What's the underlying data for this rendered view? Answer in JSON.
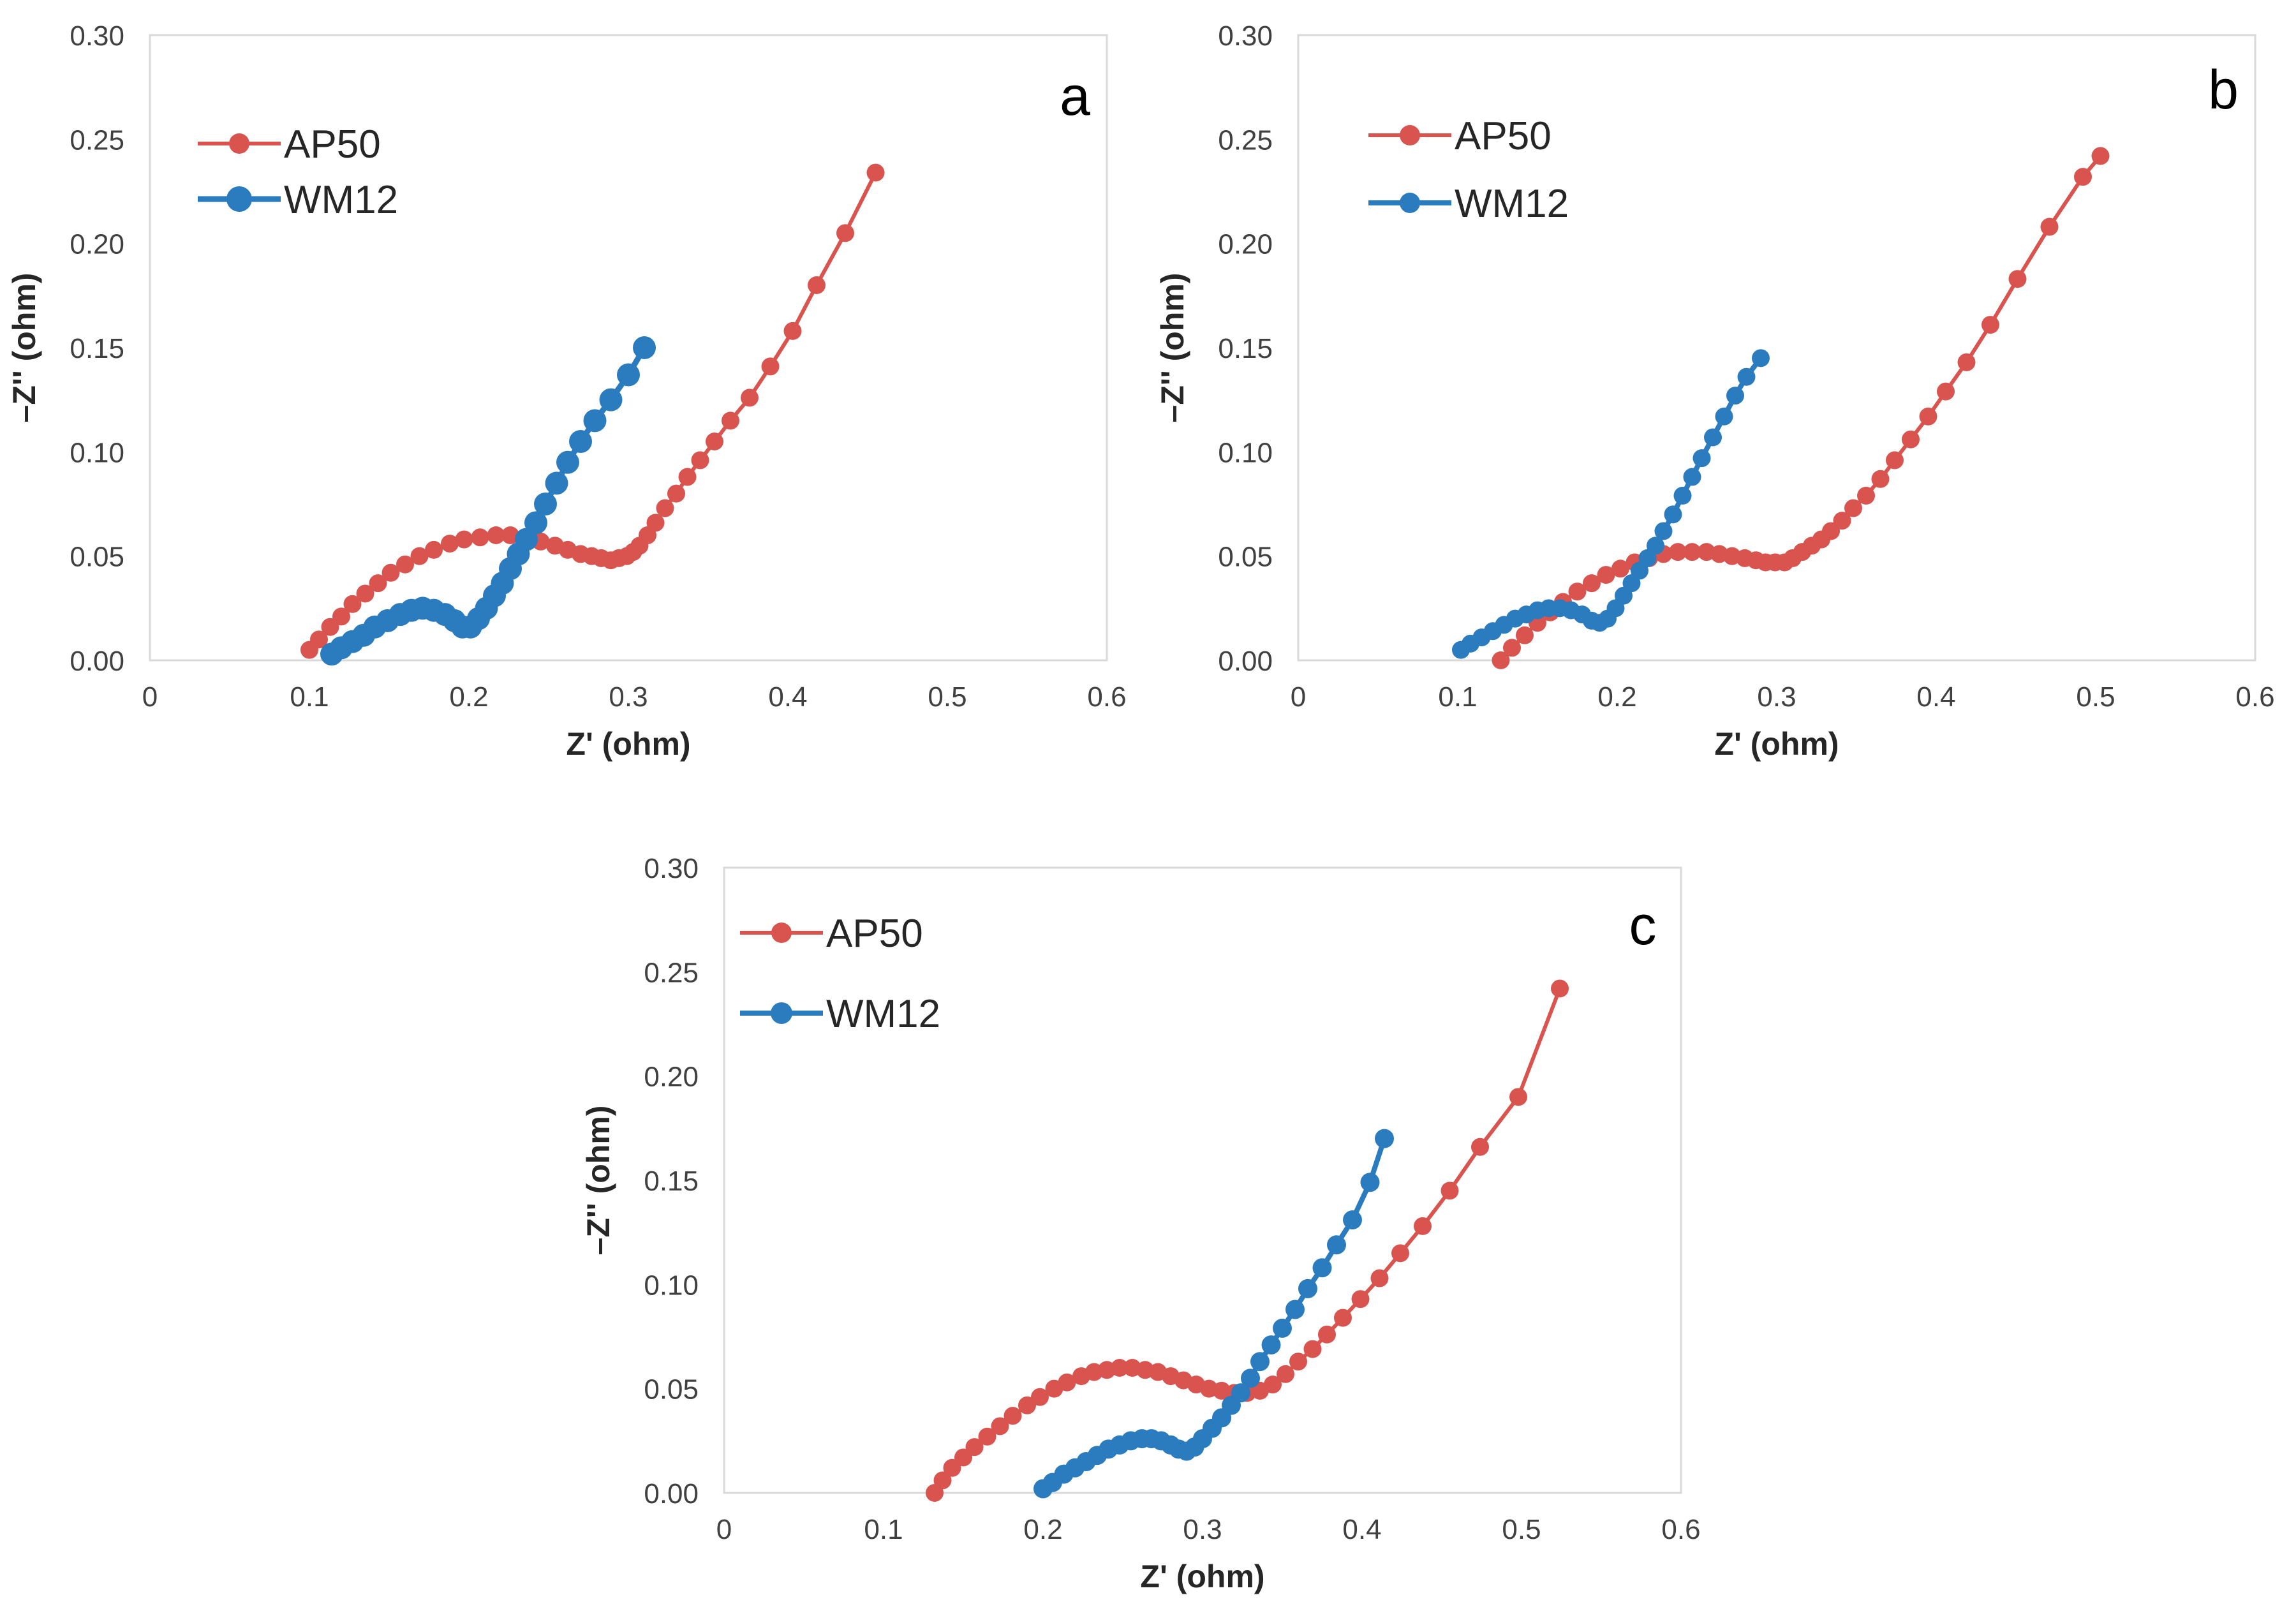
{
  "chart_data": [
    {
      "type": "scatter",
      "panel_label": "a",
      "xlabel": "Z' (ohm)",
      "ylabel": "–Z'' (ohm)",
      "xlim": [
        0,
        0.6
      ],
      "ylim": [
        0,
        0.3
      ],
      "x_ticks": [
        "0",
        "0.1",
        "0.2",
        "0.3",
        "0.4",
        "0.5",
        "0.6"
      ],
      "y_ticks": [
        "0.00",
        "0.05",
        "0.10",
        "0.15",
        "0.20",
        "0.25",
        "0.30"
      ],
      "legend_position": "top-left",
      "series": [
        {
          "name": "AP50",
          "color": "#d9534f",
          "x": [
            0.1,
            0.106,
            0.113,
            0.12,
            0.127,
            0.135,
            0.143,
            0.151,
            0.16,
            0.169,
            0.178,
            0.188,
            0.197,
            0.207,
            0.217,
            0.226,
            0.236,
            0.245,
            0.254,
            0.262,
            0.27,
            0.277,
            0.283,
            0.289,
            0.294,
            0.299,
            0.303,
            0.307,
            0.312,
            0.317,
            0.323,
            0.33,
            0.337,
            0.345,
            0.354,
            0.364,
            0.376,
            0.389,
            0.403,
            0.418,
            0.436,
            0.455
          ],
          "y": [
            0.005,
            0.01,
            0.016,
            0.021,
            0.027,
            0.032,
            0.037,
            0.042,
            0.046,
            0.05,
            0.053,
            0.056,
            0.058,
            0.059,
            0.06,
            0.06,
            0.059,
            0.057,
            0.055,
            0.053,
            0.051,
            0.05,
            0.049,
            0.048,
            0.049,
            0.05,
            0.052,
            0.055,
            0.06,
            0.066,
            0.073,
            0.08,
            0.088,
            0.096,
            0.105,
            0.115,
            0.126,
            0.141,
            0.158,
            0.18,
            0.205,
            0.234
          ]
        },
        {
          "name": "WM12",
          "color": "#2b7bbf",
          "x": [
            0.114,
            0.12,
            0.127,
            0.134,
            0.141,
            0.149,
            0.157,
            0.164,
            0.171,
            0.178,
            0.185,
            0.191,
            0.196,
            0.201,
            0.206,
            0.211,
            0.216,
            0.221,
            0.226,
            0.231,
            0.236,
            0.242,
            0.248,
            0.255,
            0.262,
            0.27,
            0.279,
            0.289,
            0.3,
            0.31
          ],
          "y": [
            0.003,
            0.006,
            0.009,
            0.012,
            0.016,
            0.019,
            0.022,
            0.024,
            0.025,
            0.024,
            0.022,
            0.019,
            0.016,
            0.016,
            0.02,
            0.025,
            0.031,
            0.037,
            0.044,
            0.051,
            0.058,
            0.066,
            0.075,
            0.085,
            0.095,
            0.105,
            0.115,
            0.125,
            0.137,
            0.15
          ]
        }
      ]
    },
    {
      "type": "scatter",
      "panel_label": "b",
      "xlabel": "Z' (ohm)",
      "ylabel": "–Z'' (ohm)",
      "xlim": [
        0,
        0.6
      ],
      "ylim": [
        0,
        0.3
      ],
      "x_ticks": [
        "0",
        "0.1",
        "0.2",
        "0.3",
        "0.4",
        "0.5",
        "0.6"
      ],
      "y_ticks": [
        "0.00",
        "0.05",
        "0.10",
        "0.15",
        "0.20",
        "0.25",
        "0.30"
      ],
      "legend_position": "top-left",
      "series": [
        {
          "name": "AP50",
          "color": "#d9534f",
          "x": [
            0.127,
            0.134,
            0.142,
            0.15,
            0.158,
            0.166,
            0.175,
            0.184,
            0.193,
            0.202,
            0.211,
            0.22,
            0.229,
            0.238,
            0.247,
            0.256,
            0.264,
            0.272,
            0.28,
            0.287,
            0.293,
            0.299,
            0.305,
            0.31,
            0.316,
            0.322,
            0.328,
            0.334,
            0.341,
            0.348,
            0.356,
            0.365,
            0.374,
            0.384,
            0.395,
            0.406,
            0.419,
            0.434,
            0.451,
            0.471,
            0.492,
            0.503
          ],
          "y": [
            0.0,
            0.006,
            0.012,
            0.018,
            0.023,
            0.028,
            0.033,
            0.037,
            0.041,
            0.044,
            0.047,
            0.049,
            0.051,
            0.052,
            0.052,
            0.052,
            0.051,
            0.05,
            0.049,
            0.048,
            0.047,
            0.047,
            0.047,
            0.049,
            0.052,
            0.055,
            0.058,
            0.062,
            0.067,
            0.073,
            0.079,
            0.087,
            0.096,
            0.106,
            0.117,
            0.129,
            0.143,
            0.161,
            0.183,
            0.208,
            0.232,
            0.242
          ]
        },
        {
          "name": "WM12",
          "color": "#2b7bbf",
          "x": [
            0.102,
            0.108,
            0.115,
            0.122,
            0.129,
            0.136,
            0.143,
            0.15,
            0.157,
            0.164,
            0.171,
            0.178,
            0.184,
            0.189,
            0.194,
            0.199,
            0.204,
            0.209,
            0.214,
            0.219,
            0.224,
            0.229,
            0.235,
            0.241,
            0.247,
            0.253,
            0.26,
            0.267,
            0.274,
            0.281,
            0.29
          ],
          "y": [
            0.005,
            0.008,
            0.011,
            0.014,
            0.017,
            0.02,
            0.022,
            0.024,
            0.025,
            0.025,
            0.024,
            0.022,
            0.019,
            0.018,
            0.02,
            0.025,
            0.031,
            0.037,
            0.043,
            0.049,
            0.055,
            0.062,
            0.07,
            0.079,
            0.088,
            0.097,
            0.107,
            0.117,
            0.127,
            0.136,
            0.145
          ]
        }
      ]
    },
    {
      "type": "scatter",
      "panel_label": "c",
      "xlabel": "Z' (ohm)",
      "ylabel": "–Z'' (ohm)",
      "xlim": [
        0,
        0.6
      ],
      "ylim": [
        0,
        0.3
      ],
      "x_ticks": [
        "0",
        "0.1",
        "0.2",
        "0.3",
        "0.4",
        "0.5",
        "0.6"
      ],
      "y_ticks": [
        "0.00",
        "0.05",
        "0.10",
        "0.15",
        "0.20",
        "0.25",
        "0.30"
      ],
      "legend_position": "top-left",
      "series": [
        {
          "name": "AP50",
          "color": "#d9534f",
          "x": [
            0.132,
            0.137,
            0.143,
            0.15,
            0.157,
            0.165,
            0.173,
            0.181,
            0.19,
            0.198,
            0.207,
            0.215,
            0.224,
            0.232,
            0.24,
            0.248,
            0.256,
            0.264,
            0.272,
            0.28,
            0.288,
            0.296,
            0.304,
            0.312,
            0.32,
            0.328,
            0.336,
            0.344,
            0.352,
            0.36,
            0.369,
            0.378,
            0.388,
            0.399,
            0.411,
            0.424,
            0.438,
            0.455,
            0.474,
            0.498,
            0.524
          ],
          "y": [
            0.0,
            0.006,
            0.012,
            0.017,
            0.022,
            0.027,
            0.032,
            0.037,
            0.042,
            0.046,
            0.05,
            0.053,
            0.056,
            0.058,
            0.059,
            0.06,
            0.06,
            0.059,
            0.058,
            0.056,
            0.054,
            0.052,
            0.05,
            0.049,
            0.048,
            0.048,
            0.049,
            0.052,
            0.057,
            0.063,
            0.069,
            0.076,
            0.084,
            0.093,
            0.103,
            0.115,
            0.128,
            0.145,
            0.166,
            0.19,
            0.242
          ]
        },
        {
          "name": "WM12",
          "color": "#2b7bbf",
          "x": [
            0.2,
            0.206,
            0.213,
            0.22,
            0.227,
            0.234,
            0.241,
            0.248,
            0.255,
            0.262,
            0.268,
            0.274,
            0.28,
            0.285,
            0.29,
            0.295,
            0.3,
            0.306,
            0.312,
            0.318,
            0.324,
            0.33,
            0.336,
            0.343,
            0.35,
            0.358,
            0.366,
            0.375,
            0.384,
            0.394,
            0.405,
            0.414
          ],
          "y": [
            0.002,
            0.005,
            0.009,
            0.012,
            0.015,
            0.018,
            0.021,
            0.023,
            0.025,
            0.026,
            0.026,
            0.025,
            0.023,
            0.021,
            0.02,
            0.022,
            0.026,
            0.031,
            0.036,
            0.042,
            0.048,
            0.055,
            0.063,
            0.071,
            0.079,
            0.088,
            0.098,
            0.108,
            0.119,
            0.131,
            0.149,
            0.17
          ]
        }
      ]
    }
  ]
}
